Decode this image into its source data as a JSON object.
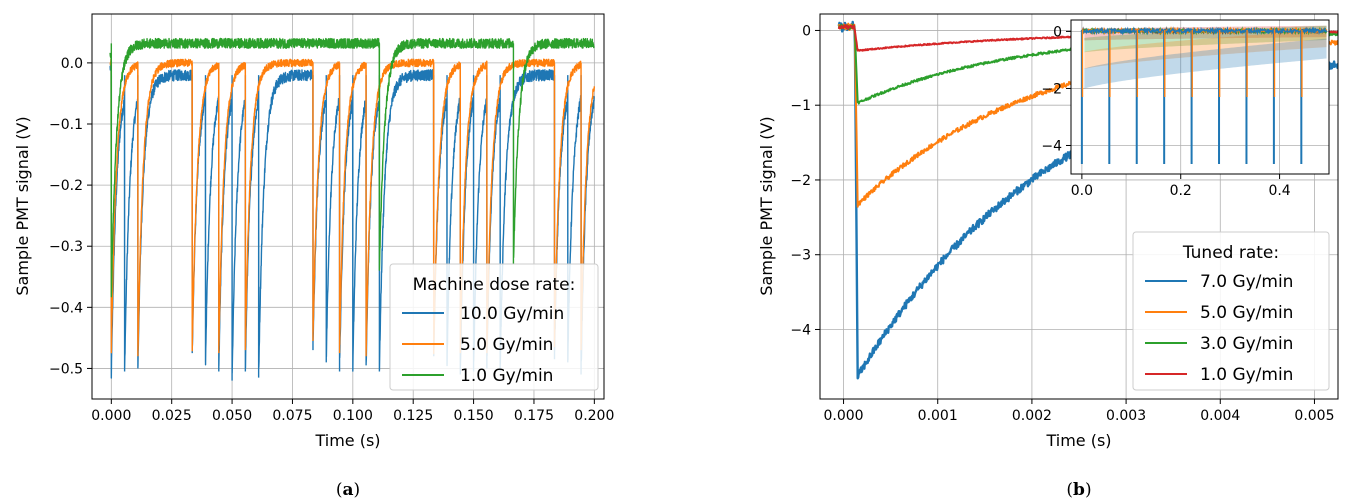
{
  "panels": [
    {
      "caption_paren_open": "(",
      "caption_letter": "a",
      "caption_paren_close": ")"
    },
    {
      "caption_paren_open": "(",
      "caption_letter": "b",
      "caption_paren_close": ")"
    }
  ],
  "colors": {
    "blue": "#1f77b4",
    "orange": "#ff7f0e",
    "green": "#2ca02c",
    "red": "#d62728"
  },
  "chart_data": [
    {
      "id": "a",
      "type": "line",
      "xlabel": "Time (s)",
      "ylabel": "Sample PMT signal (V)",
      "xlim": [
        -0.008,
        0.204
      ],
      "ylim": [
        -0.55,
        0.08
      ],
      "xticks": [
        0.0,
        0.025,
        0.05,
        0.075,
        0.1,
        0.125,
        0.15,
        0.175,
        0.2
      ],
      "xtick_labels": [
        "0.000",
        "0.025",
        "0.050",
        "0.075",
        "0.100",
        "0.125",
        "0.150",
        "0.175",
        "0.200"
      ],
      "yticks": [
        0.0,
        -0.1,
        -0.2,
        -0.3,
        -0.4,
        -0.5
      ],
      "ytick_labels": [
        "0.0",
        "−0.1",
        "−0.2",
        "−0.3",
        "−0.4",
        "−0.5"
      ],
      "grid": true,
      "legend": {
        "title": "Machine dose rate:",
        "placement": "lower-right"
      },
      "series": [
        {
          "name": "10.0 Gy/min",
          "color": "#1f77b4",
          "baseline": -0.02,
          "noise": 0.018,
          "pulses": [
            [
              0.0,
              -0.51
            ],
            [
              0.0055,
              -0.505
            ],
            [
              0.011,
              -0.5
            ],
            [
              0.0335,
              -0.475
            ],
            [
              0.039,
              -0.49
            ],
            [
              0.0445,
              -0.505
            ],
            [
              0.05,
              -0.52
            ],
            [
              0.0555,
              -0.505
            ],
            [
              0.061,
              -0.515
            ],
            [
              0.0835,
              -0.47
            ],
            [
              0.089,
              -0.49
            ],
            [
              0.0945,
              -0.505
            ],
            [
              0.1,
              -0.5
            ],
            [
              0.1055,
              -0.495
            ],
            [
              0.111,
              -0.505
            ],
            [
              0.1335,
              -0.48
            ],
            [
              0.139,
              -0.49
            ],
            [
              0.1445,
              -0.51
            ],
            [
              0.15,
              -0.505
            ],
            [
              0.1555,
              -0.5
            ],
            [
              0.161,
              -0.505
            ],
            [
              0.1835,
              -0.485
            ],
            [
              0.189,
              -0.49
            ],
            [
              0.1945,
              -0.51
            ]
          ]
        },
        {
          "name": "5.0 Gy/min",
          "color": "#ff7f0e",
          "baseline": 0.0,
          "noise": 0.012,
          "pulses": [
            [
              0.0,
              -0.47
            ],
            [
              0.011,
              -0.48
            ],
            [
              0.0335,
              -0.47
            ],
            [
              0.0445,
              -0.475
            ],
            [
              0.0555,
              -0.47
            ],
            [
              0.0835,
              -0.455
            ],
            [
              0.0945,
              -0.475
            ],
            [
              0.1055,
              -0.48
            ],
            [
              0.1335,
              -0.475
            ],
            [
              0.1445,
              -0.475
            ],
            [
              0.1555,
              -0.475
            ],
            [
              0.1835,
              -0.465
            ],
            [
              0.1945,
              -0.47
            ]
          ]
        },
        {
          "name": "1.0 Gy/min",
          "color": "#2ca02c",
          "baseline": 0.032,
          "noise": 0.016,
          "pulses": [
            [
              0.0,
              -0.38
            ],
            [
              0.111,
              -0.34
            ],
            [
              0.1665,
              -0.33
            ]
          ]
        }
      ]
    },
    {
      "id": "b",
      "type": "line",
      "xlabel": "Time (s)",
      "ylabel": "Sample PMT signal (V)",
      "xlim": [
        -0.00025,
        0.00525
      ],
      "ylim": [
        -4.93,
        0.22
      ],
      "xticks": [
        0.0,
        0.001,
        0.002,
        0.003,
        0.004,
        0.005
      ],
      "xtick_labels": [
        "0.000",
        "0.001",
        "0.002",
        "0.003",
        "0.004",
        "0.005"
      ],
      "yticks": [
        0,
        -1,
        -2,
        -3,
        -4
      ],
      "ytick_labels": [
        "0",
        "−1",
        "−2",
        "−3",
        "−4"
      ],
      "grid": true,
      "legend": {
        "title": "Tuned rate:",
        "placement": "lower-right"
      },
      "series": [
        {
          "name": "7.0 Gy/min",
          "color": "#1f77b4",
          "t_start": 0.00012,
          "min_t": 0.00015,
          "min_v": -4.63,
          "tau": 0.0022,
          "noise": 0.05
        },
        {
          "name": "5.0 Gy/min",
          "color": "#ff7f0e",
          "t_start": 0.00012,
          "min_t": 0.00015,
          "min_v": -2.33,
          "tau": 0.0019,
          "noise": 0.03
        },
        {
          "name": "3.0 Gy/min",
          "color": "#2ca02c",
          "t_start": 0.00012,
          "min_t": 0.00015,
          "min_v": -0.97,
          "tau": 0.0017,
          "noise": 0.015
        },
        {
          "name": "1.0 Gy/min",
          "color": "#d62728",
          "t_start": 0.00012,
          "min_t": 0.00015,
          "min_v": -0.27,
          "tau": 0.002,
          "noise": 0.008
        }
      ],
      "inset": {
        "xlim": [
          -0.022,
          0.5
        ],
        "ylim": [
          -5.0,
          0.4
        ],
        "xticks": [
          0.0,
          0.2,
          0.4
        ],
        "xtick_labels": [
          "0.0",
          "0.2",
          "0.4"
        ],
        "yticks": [
          0,
          -2,
          -4
        ],
        "ytick_labels": [
          "0",
          "−2",
          "−4"
        ],
        "pulse_times": [
          0.0,
          0.0555,
          0.111,
          0.1665,
          0.222,
          0.2775,
          0.333,
          0.3885,
          0.444
        ],
        "pulse_depth": -4.65,
        "band_start": [
          -1.7,
          -1.05,
          -0.5,
          -0.12
        ],
        "band_end": [
          -0.6,
          -0.25,
          -0.05,
          0.0
        ]
      }
    }
  ]
}
